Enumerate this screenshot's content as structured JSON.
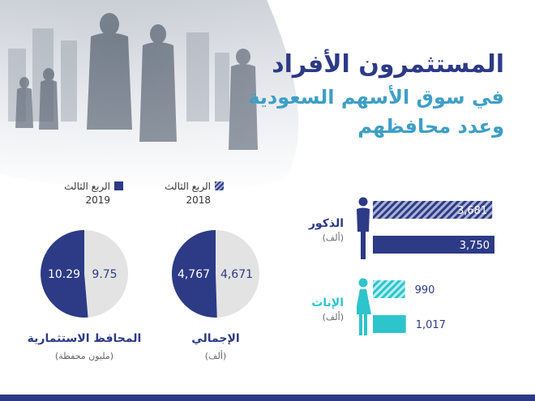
{
  "title": {
    "line1": "المستثمرون الأفراد",
    "line2": "في سوق الأسهم السعودية",
    "line3": "وعدد محافظهم"
  },
  "legend": {
    "left": {
      "label": "الربع الثالث",
      "year": "2019"
    },
    "right": {
      "label": "الربع الثالث",
      "year": "2018"
    }
  },
  "colors": {
    "navy": "#2d3a86",
    "navy_hatch": "#a9b1d6",
    "teal": "#2ec4cc",
    "teal_hatch": "#b6eef0",
    "pie_bg": "#e3e3e3"
  },
  "chart_data": [
    {
      "type": "pie",
      "label": "المحافظ الاستثمارية",
      "unit": "(مليون محفظة)",
      "slices": [
        {
          "period": "الربع الثالث 2019",
          "value": 10.29,
          "display": "10.29"
        },
        {
          "period": "الربع الثالث 2018",
          "value": 9.75,
          "display": "9.75"
        }
      ]
    },
    {
      "type": "pie",
      "label": "الإجمالي",
      "unit": "(ألف)",
      "slices": [
        {
          "period": "الربع الثالث 2019",
          "value": 4767,
          "display": "4,767"
        },
        {
          "period": "الربع الثالث 2018",
          "value": 4671,
          "display": "4,671"
        }
      ]
    },
    {
      "type": "bar",
      "orientation": "horizontal",
      "groups": [
        {
          "name": "الذكور",
          "unit": "(ألف)",
          "bars": [
            {
              "period": "الربع الثالث 2018",
              "value": 3681,
              "display": "3,681"
            },
            {
              "period": "الربع الثالث 2019",
              "value": 3750,
              "display": "3,750"
            }
          ]
        },
        {
          "name": "الإناث",
          "unit": "(ألف)",
          "bars": [
            {
              "period": "الربع الثالث 2018",
              "value": 990,
              "display": "990"
            },
            {
              "period": "الربع الثالث 2019",
              "value": 1017,
              "display": "1,017"
            }
          ]
        }
      ]
    }
  ]
}
